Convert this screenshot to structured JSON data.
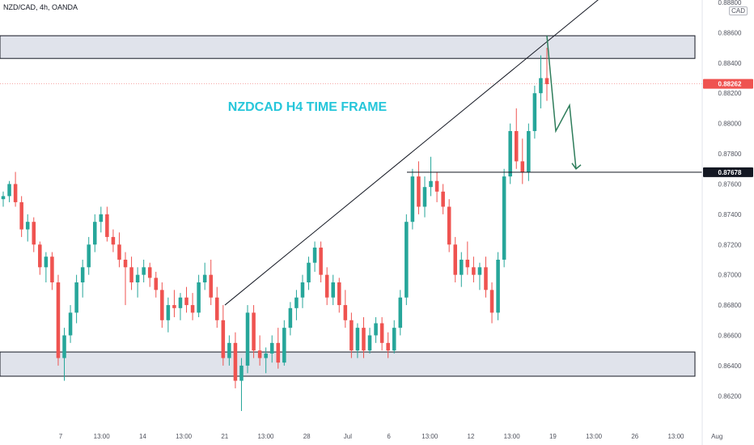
{
  "header": {
    "symbol_info": "NZD/CAD, 4h, OANDA",
    "currency": "CAD"
  },
  "chart_data": {
    "type": "candlestick",
    "title": "NZDCAD H4 TIME FRAME",
    "ylim": [
      0.861,
      0.868
    ],
    "y_ticks": [
      "0.86200",
      "0.86400",
      "0.86600",
      "0.86800",
      "0.87000",
      "0.87200",
      "0.87400",
      "0.87600",
      "0.87800",
      "0.88000",
      "0.88200",
      "0.88400",
      "0.88600",
      "0.88800"
    ],
    "x_ticks": [
      "7",
      "13:00",
      "14",
      "13:00",
      "21",
      "13:00",
      "28",
      "Jul",
      "6",
      "13:00",
      "12",
      "13:00",
      "19",
      "13:00",
      "26",
      "13:00",
      "Aug"
    ],
    "price_labels": {
      "current": "0.88262",
      "level": "0.87678"
    },
    "zones": [
      {
        "name": "resistance zone",
        "low": 0.8843,
        "high": 0.8858
      },
      {
        "name": "support zone",
        "low": 0.8633,
        "high": 0.8649
      }
    ],
    "levels": [
      {
        "name": "current price",
        "value": 0.88262
      },
      {
        "name": "target level",
        "value": 0.87678
      }
    ],
    "colors": {
      "up": "#26a69a",
      "down": "#ef5350",
      "title": "#26c6da",
      "arrow": "#2e7d5b",
      "current_price": "#ef5350",
      "zone_fill": "#e0e3eb"
    },
    "candles": [
      [
        0.875,
        0.8755,
        0.8745,
        0.8752
      ],
      [
        0.8752,
        0.8762,
        0.8748,
        0.876
      ],
      [
        0.876,
        0.8768,
        0.8745,
        0.8748
      ],
      [
        0.8748,
        0.8752,
        0.8725,
        0.873
      ],
      [
        0.873,
        0.874,
        0.8722,
        0.8735
      ],
      [
        0.8735,
        0.8738,
        0.8715,
        0.872
      ],
      [
        0.872,
        0.8722,
        0.87,
        0.8705
      ],
      [
        0.8705,
        0.8715,
        0.8695,
        0.8712
      ],
      [
        0.8712,
        0.8715,
        0.869,
        0.8695
      ],
      [
        0.8695,
        0.87,
        0.864,
        0.8645
      ],
      [
        0.8645,
        0.8665,
        0.863,
        0.866
      ],
      [
        0.866,
        0.868,
        0.8655,
        0.8675
      ],
      [
        0.8675,
        0.87,
        0.8668,
        0.8695
      ],
      [
        0.8695,
        0.871,
        0.8685,
        0.8705
      ],
      [
        0.8705,
        0.8725,
        0.87,
        0.872
      ],
      [
        0.872,
        0.874,
        0.8715,
        0.8735
      ],
      [
        0.8735,
        0.8745,
        0.8728,
        0.874
      ],
      [
        0.874,
        0.8745,
        0.8722,
        0.8725
      ],
      [
        0.8725,
        0.873,
        0.8715,
        0.872
      ],
      [
        0.872,
        0.8728,
        0.8705,
        0.871
      ],
      [
        0.871,
        0.8715,
        0.868,
        0.8705
      ],
      [
        0.8705,
        0.8712,
        0.869,
        0.8695
      ],
      [
        0.8695,
        0.8705,
        0.8685,
        0.87
      ],
      [
        0.87,
        0.871,
        0.8695,
        0.8705
      ],
      [
        0.8705,
        0.8708,
        0.8692,
        0.8698
      ],
      [
        0.8698,
        0.8702,
        0.8685,
        0.869
      ],
      [
        0.869,
        0.8695,
        0.8665,
        0.867
      ],
      [
        0.867,
        0.8685,
        0.8662,
        0.868
      ],
      [
        0.868,
        0.869,
        0.8672,
        0.8678
      ],
      [
        0.8678,
        0.8688,
        0.867,
        0.8685
      ],
      [
        0.8685,
        0.8692,
        0.8675,
        0.868
      ],
      [
        0.868,
        0.8688,
        0.867,
        0.8675
      ],
      [
        0.8675,
        0.87,
        0.8672,
        0.8695
      ],
      [
        0.8695,
        0.8708,
        0.869,
        0.87
      ],
      [
        0.87,
        0.871,
        0.868,
        0.8685
      ],
      [
        0.8685,
        0.8692,
        0.8665,
        0.867
      ],
      [
        0.867,
        0.868,
        0.864,
        0.8645
      ],
      [
        0.8645,
        0.866,
        0.864,
        0.8655
      ],
      [
        0.8655,
        0.8662,
        0.8625,
        0.863
      ],
      [
        0.863,
        0.8645,
        0.861,
        0.864
      ],
      [
        0.864,
        0.868,
        0.8635,
        0.8675
      ],
      [
        0.8675,
        0.868,
        0.8645,
        0.865
      ],
      [
        0.865,
        0.866,
        0.864,
        0.8645
      ],
      [
        0.8645,
        0.8652,
        0.8635,
        0.8648
      ],
      [
        0.8648,
        0.866,
        0.8642,
        0.8655
      ],
      [
        0.8655,
        0.8665,
        0.8638,
        0.8642
      ],
      [
        0.8642,
        0.867,
        0.864,
        0.8665
      ],
      [
        0.8665,
        0.8682,
        0.866,
        0.8678
      ],
      [
        0.8678,
        0.869,
        0.867,
        0.8685
      ],
      [
        0.8685,
        0.87,
        0.8678,
        0.8695
      ],
      [
        0.8695,
        0.8712,
        0.869,
        0.8708
      ],
      [
        0.8708,
        0.8722,
        0.8702,
        0.8718
      ],
      [
        0.8718,
        0.8722,
        0.8695,
        0.87
      ],
      [
        0.87,
        0.8705,
        0.868,
        0.8685
      ],
      [
        0.8685,
        0.87,
        0.868,
        0.8695
      ],
      [
        0.8695,
        0.8698,
        0.8675,
        0.868
      ],
      [
        0.868,
        0.869,
        0.8665,
        0.867
      ],
      [
        0.867,
        0.8675,
        0.8645,
        0.865
      ],
      [
        0.865,
        0.8668,
        0.8645,
        0.8665
      ],
      [
        0.8665,
        0.8672,
        0.8645,
        0.865
      ],
      [
        0.865,
        0.8665,
        0.8648,
        0.866
      ],
      [
        0.866,
        0.8672,
        0.8655,
        0.8668
      ],
      [
        0.8668,
        0.8672,
        0.865,
        0.8655
      ],
      [
        0.8655,
        0.8662,
        0.8645,
        0.865
      ],
      [
        0.865,
        0.867,
        0.8648,
        0.8665
      ],
      [
        0.8665,
        0.869,
        0.866,
        0.8685
      ],
      [
        0.8685,
        0.874,
        0.868,
        0.8735
      ],
      [
        0.8735,
        0.877,
        0.873,
        0.8765
      ],
      [
        0.8765,
        0.8775,
        0.874,
        0.8745
      ],
      [
        0.8745,
        0.8765,
        0.8738,
        0.8758
      ],
      [
        0.8758,
        0.8778,
        0.8752,
        0.8762
      ],
      [
        0.8762,
        0.8768,
        0.8748,
        0.8755
      ],
      [
        0.8755,
        0.876,
        0.874,
        0.8745
      ],
      [
        0.8745,
        0.875,
        0.8715,
        0.872
      ],
      [
        0.872,
        0.8725,
        0.8695,
        0.87
      ],
      [
        0.87,
        0.8715,
        0.8692,
        0.871
      ],
      [
        0.871,
        0.8722,
        0.87,
        0.8705
      ],
      [
        0.8705,
        0.8712,
        0.8695,
        0.87
      ],
      [
        0.87,
        0.8708,
        0.869,
        0.8705
      ],
      [
        0.8705,
        0.8712,
        0.8685,
        0.869
      ],
      [
        0.869,
        0.8695,
        0.8668,
        0.8675
      ],
      [
        0.8675,
        0.8715,
        0.867,
        0.871
      ],
      [
        0.871,
        0.877,
        0.8705,
        0.8765
      ],
      [
        0.8765,
        0.88,
        0.876,
        0.8795
      ],
      [
        0.8795,
        0.881,
        0.877,
        0.8775
      ],
      [
        0.8775,
        0.879,
        0.876,
        0.8768
      ],
      [
        0.8768,
        0.88,
        0.8762,
        0.8795
      ],
      [
        0.8795,
        0.8825,
        0.879,
        0.882
      ],
      [
        0.882,
        0.8845,
        0.881,
        0.883
      ],
      [
        0.883,
        0.885,
        0.8815,
        0.8826
      ]
    ],
    "annotations": {
      "trendline": "rising trendline across the highs",
      "projection": "zigzag arrow pointing down to 0.87678"
    }
  }
}
